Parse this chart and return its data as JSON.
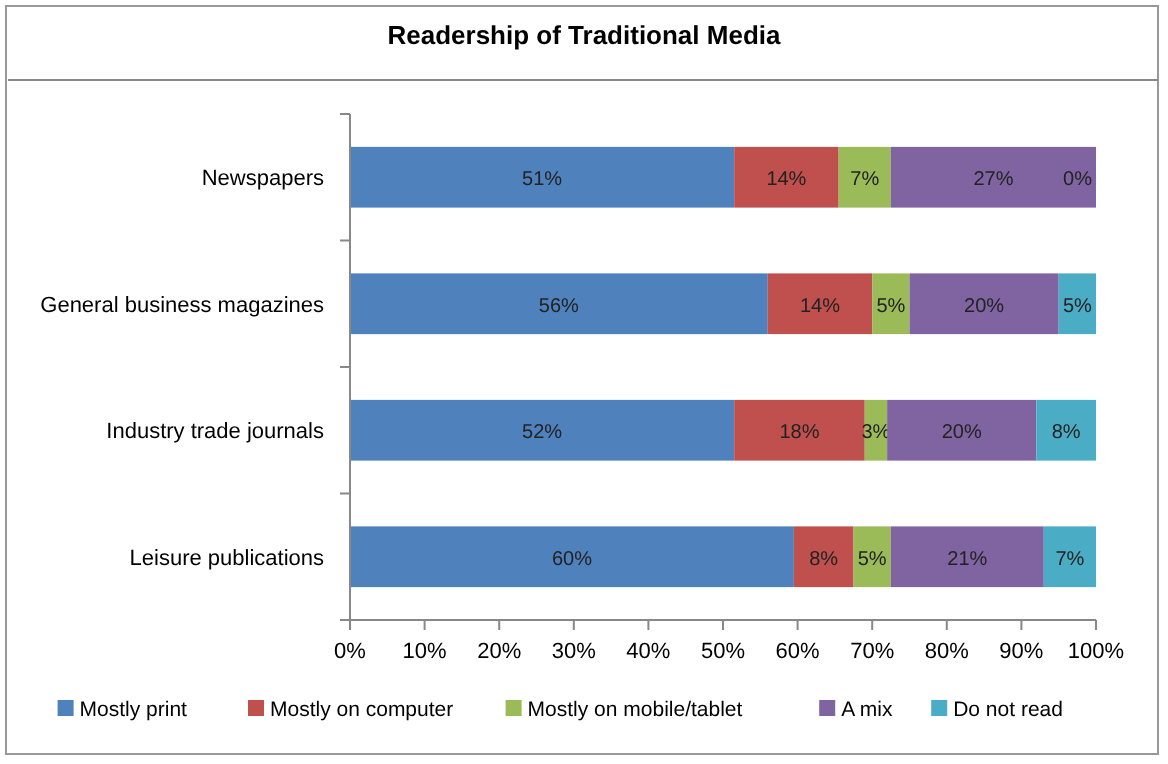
{
  "chart_data": {
    "type": "bar",
    "title": "Readership of Traditional Media",
    "orientation": "horizontal",
    "stacked": true,
    "categories": [
      "Newspapers",
      "General business magazines",
      "Industry trade journals",
      "Leisure publications"
    ],
    "series": [
      {
        "name": "Mostly print",
        "color": "#4f81bd",
        "values": [
          51.5,
          56,
          51.5,
          59.5
        ],
        "value_labels": [
          "51%",
          "56%",
          "52%",
          "60%"
        ]
      },
      {
        "name": "Mostly on computer",
        "color": "#c0504d",
        "values": [
          14,
          14,
          17.5,
          8
        ],
        "value_labels": [
          "14%",
          "14%",
          "18%",
          "8%"
        ]
      },
      {
        "name": "Mostly on mobile/tablet",
        "color": "#9bbb59",
        "values": [
          7,
          5,
          3,
          5
        ],
        "value_labels": [
          "7%",
          "5%",
          "3%",
          "5%"
        ]
      },
      {
        "name": "A mix",
        "color": "#8064a2",
        "values": [
          27.5,
          20,
          20,
          20.5
        ],
        "value_labels": [
          "27%",
          "20%",
          "20%",
          "21%"
        ]
      },
      {
        "name": "Do not read",
        "color": "#4bacc6",
        "values": [
          0,
          5,
          8,
          7
        ],
        "value_labels": [
          "0%",
          "5%",
          "8%",
          "7%"
        ]
      }
    ],
    "xlim": [
      0,
      100
    ],
    "xticks": [
      {
        "value": 0,
        "label": "0%"
      },
      {
        "value": 10,
        "label": "10%"
      },
      {
        "value": 20,
        "label": "20%"
      },
      {
        "value": 30,
        "label": "30%"
      },
      {
        "value": 40,
        "label": "40%"
      },
      {
        "value": 50,
        "label": "50%"
      },
      {
        "value": 60,
        "label": "60%"
      },
      {
        "value": 70,
        "label": "70%"
      },
      {
        "value": 80,
        "label": "80%"
      },
      {
        "value": 90,
        "label": "90%"
      },
      {
        "value": 100,
        "label": "100%"
      }
    ],
    "legend": "bottom"
  }
}
